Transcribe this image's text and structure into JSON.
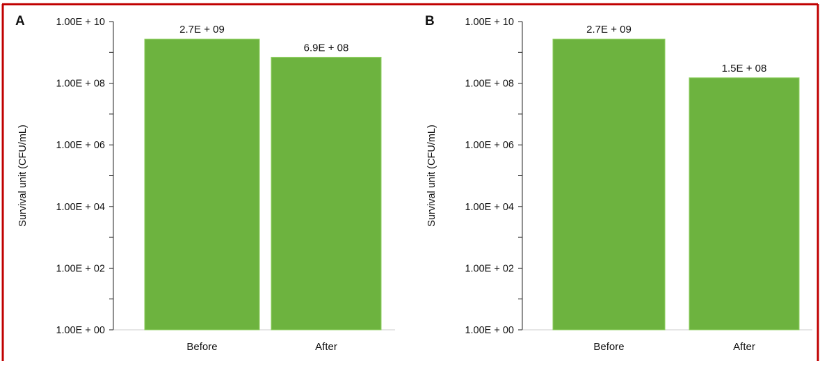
{
  "colors": {
    "bar": "#6db33f",
    "frame": "#c00000",
    "axis": "#222222"
  },
  "chart_data": [
    {
      "panel_label": "A",
      "type": "bar",
      "scale": "log10",
      "categories": [
        "Before",
        "After"
      ],
      "values": [
        2700000000.0,
        690000000.0
      ],
      "data_labels": [
        "2.7E + 09",
        "6.9E + 08"
      ],
      "ylabel": "Survival unit (CFU/mL)",
      "ylim": [
        1,
        10000000000.0
      ],
      "yticks": [
        {
          "value": 10000000000.0,
          "label": "1.00E + 10"
        },
        {
          "value": 100000000.0,
          "label": "1.00E + 08"
        },
        {
          "value": 1000000.0,
          "label": "1.00E + 06"
        },
        {
          "value": 10000.0,
          "label": "1.00E + 04"
        },
        {
          "value": 100.0,
          "label": "1.00E + 02"
        },
        {
          "value": 1,
          "label": "1.00E + 00"
        }
      ]
    },
    {
      "panel_label": "B",
      "type": "bar",
      "scale": "log10",
      "categories": [
        "Before",
        "After"
      ],
      "values": [
        2700000000.0,
        150000000.0
      ],
      "data_labels": [
        "2.7E + 09",
        "1.5E + 08"
      ],
      "ylabel": "Survival unit (CFU/mL)",
      "ylim": [
        1,
        10000000000.0
      ],
      "yticks": [
        {
          "value": 10000000000.0,
          "label": "1.00E + 10"
        },
        {
          "value": 100000000.0,
          "label": "1.00E + 08"
        },
        {
          "value": 1000000.0,
          "label": "1.00E + 06"
        },
        {
          "value": 10000.0,
          "label": "1.00E + 04"
        },
        {
          "value": 100.0,
          "label": "1.00E + 02"
        },
        {
          "value": 1,
          "label": "1.00E + 00"
        }
      ]
    }
  ]
}
